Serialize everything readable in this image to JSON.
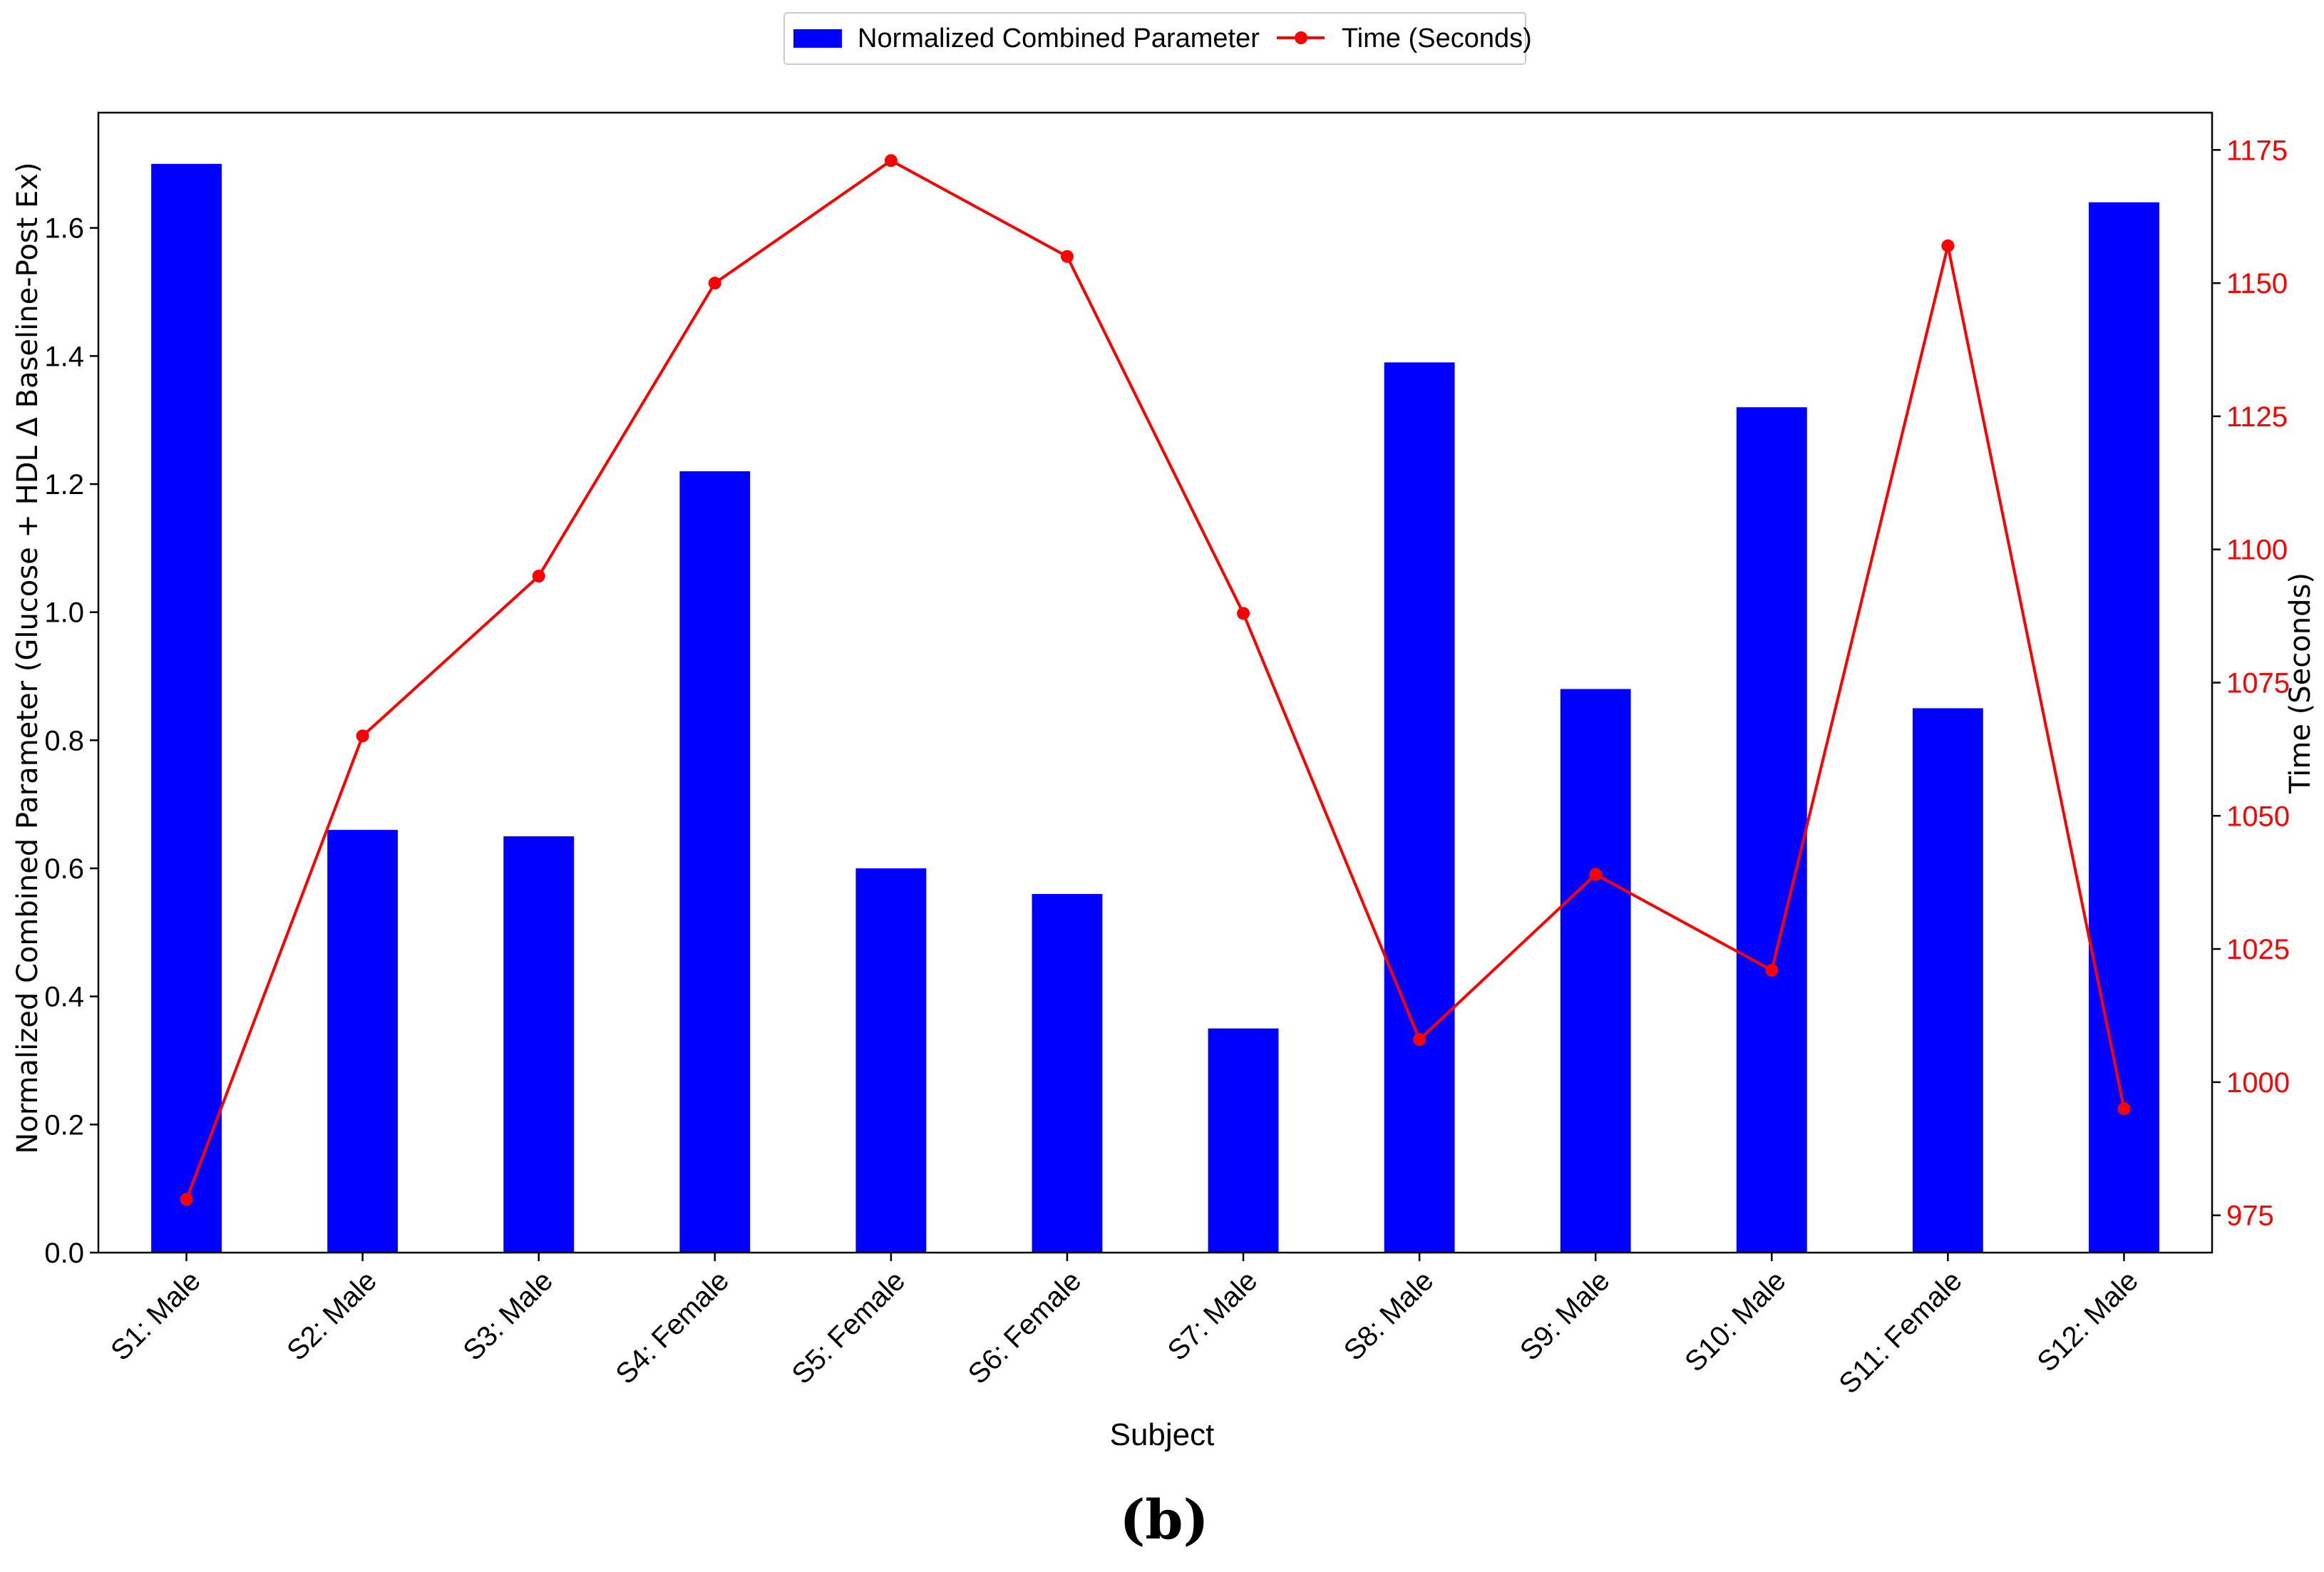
{
  "colors": {
    "bar": "#0000ff",
    "line": "#ff0000",
    "right_axis": "#ff0000",
    "axis": "#000000"
  },
  "caption": "(b)",
  "chart_data": {
    "type": "bar",
    "categories": [
      "S1: Male",
      "S2: Male",
      "S3: Male",
      "S4: Female",
      "S5: Female",
      "S6: Female",
      "S7: Male",
      "S8: Male",
      "S9: Male",
      "S10: Male",
      "S11: Female",
      "S12: Male"
    ],
    "xlabel": "Subject",
    "ylabel": "Normalized Combined Parameter (Glucose + HDL Δ Baseline-Post Ex)",
    "y2label": "Time (Seconds)",
    "ylim": [
      0,
      1.78
    ],
    "y2lim": [
      968,
      1182
    ],
    "yticks": [
      "0.0",
      "0.2",
      "0.4",
      "0.6",
      "0.8",
      "1.0",
      "1.2",
      "1.4",
      "1.6"
    ],
    "y2ticks": [
      "975",
      "1000",
      "1025",
      "1050",
      "1075",
      "1100",
      "1125",
      "1150",
      "1175"
    ],
    "legend_position": "top-center",
    "grid": false,
    "series": [
      {
        "name": "Normalized Combined Parameter",
        "type": "bar",
        "axis": "left",
        "values": [
          1.7,
          0.66,
          0.65,
          1.22,
          0.6,
          0.56,
          0.35,
          1.39,
          0.88,
          1.32,
          0.85,
          1.64
        ]
      },
      {
        "name": "Time (Seconds)",
        "type": "line",
        "axis": "right",
        "values": [
          978,
          1065,
          1095,
          1150,
          1173,
          1155,
          1088,
          1008,
          1039,
          1021,
          1157,
          995
        ]
      }
    ]
  }
}
